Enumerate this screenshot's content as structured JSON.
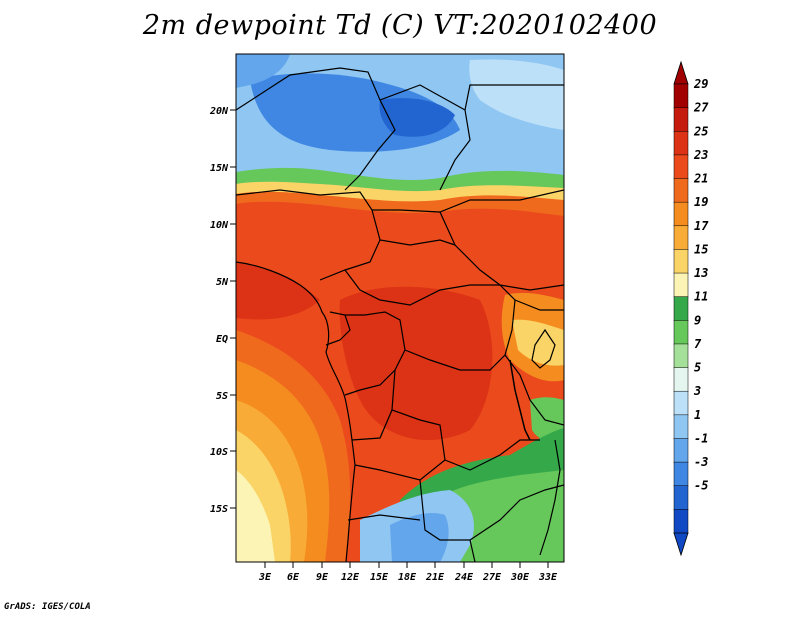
{
  "title": "2m dewpoint Td (C) VT:2020102400",
  "credit": "GrADS: IGES/COLA",
  "lat_labels": [
    "20N",
    "15N",
    "10N",
    "5N",
    "EQ",
    "5S",
    "10S",
    "15S"
  ],
  "lon_labels": [
    "3E",
    "6E",
    "9E",
    "12E",
    "15E",
    "18E",
    "21E",
    "24E",
    "27E",
    "30E",
    "33E"
  ],
  "colorbar": {
    "labels": [
      "29",
      "27",
      "25",
      "23",
      "21",
      "19",
      "17",
      "15",
      "13",
      "11",
      "9",
      "7",
      "5",
      "3",
      "1",
      "-1",
      "-3",
      "-5"
    ],
    "colors": [
      "#a00000",
      "#c41b0e",
      "#dc3215",
      "#eb4a1c",
      "#f06a1e",
      "#f58c1f",
      "#f8ac37",
      "#fbd468",
      "#fbf4b4",
      "#35a94a",
      "#66c75b",
      "#a4e099",
      "#e4f6ef",
      "#bde0f9",
      "#8fc6f2",
      "#63a6ec",
      "#3f87e2",
      "#2264d0",
      "#1148c4"
    ],
    "top_color": "#a00000",
    "bottom_color": "#1148c4"
  }
}
